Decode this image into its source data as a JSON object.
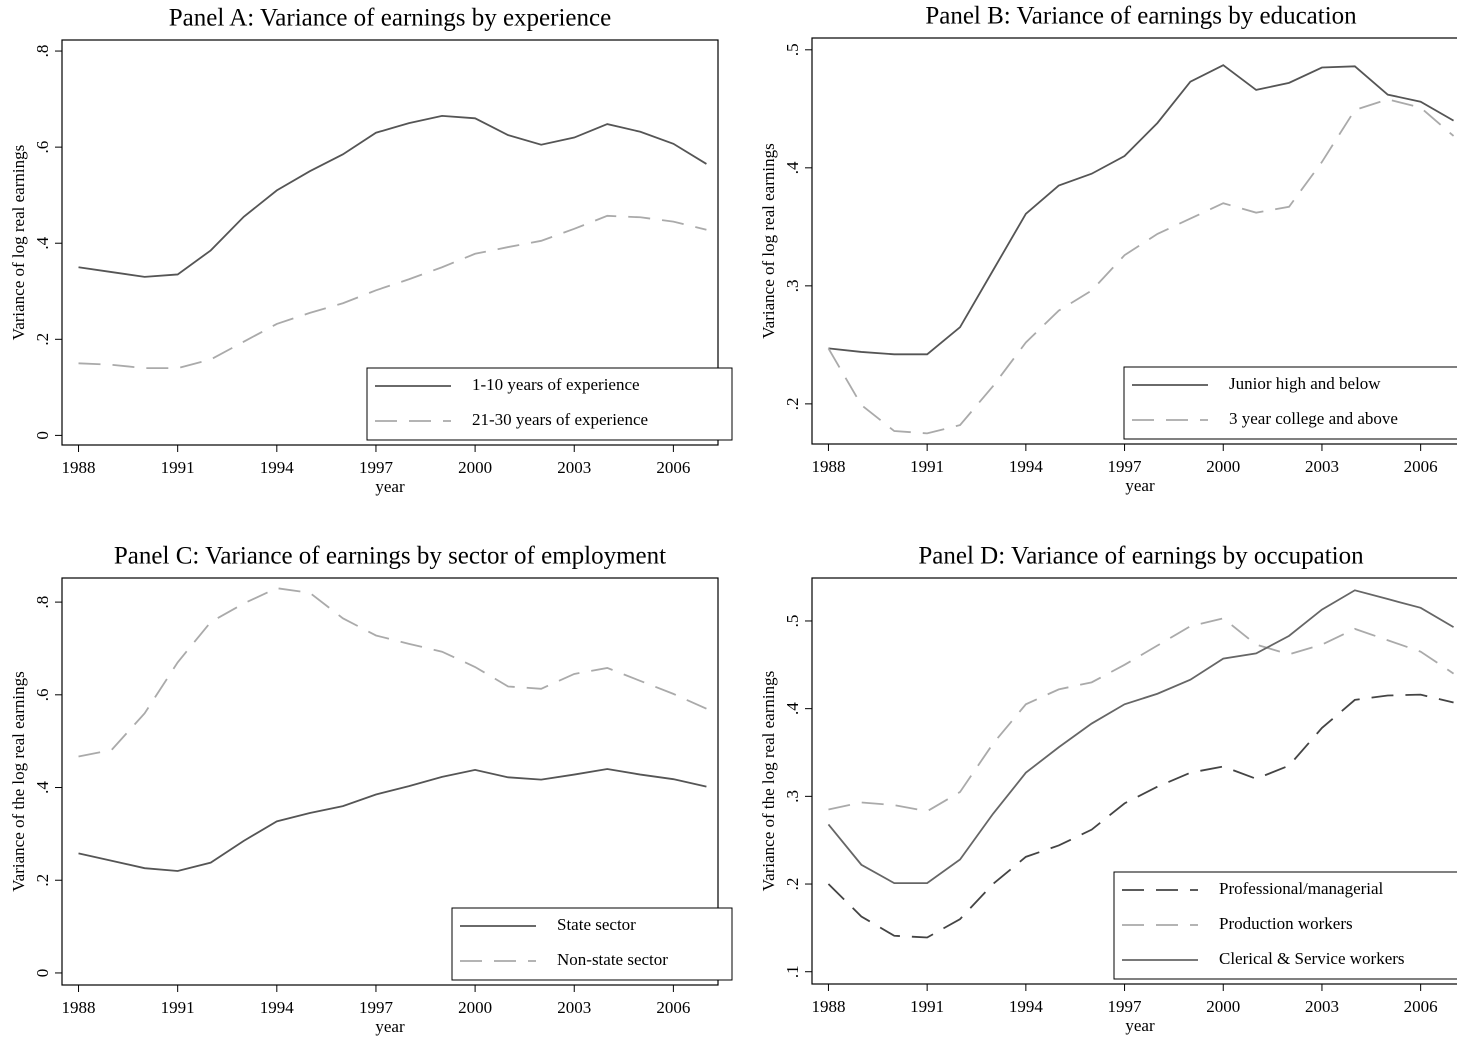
{
  "chart_data": [
    {
      "type": "line",
      "title": "Panel A: Variance of earnings by experience",
      "x_label": "year",
      "y_label": "Variance of log real earnings",
      "x": [
        1988,
        1989,
        1990,
        1991,
        1992,
        1993,
        1994,
        1995,
        1996,
        1997,
        1998,
        1999,
        2000,
        2001,
        2002,
        2003,
        2004,
        2005,
        2006,
        2007
      ],
      "xlim": [
        1987.5,
        2007.35
      ],
      "xticks": [
        1988,
        1991,
        1994,
        1997,
        2000,
        2003,
        2006
      ],
      "ylim": [
        -0.02,
        0.823
      ],
      "yticks": [
        0,
        {
          "value": 0.2,
          "label": ".2"
        },
        {
          "value": 0.4,
          "label": ".4"
        },
        {
          "value": 0.6,
          "label": ".6"
        },
        {
          "value": 0.8,
          "label": ".8"
        }
      ],
      "legend": "lower right",
      "series": [
        {
          "name": "1-10 years of experience",
          "color": "#555555",
          "dashed": false,
          "values": [
            0.35,
            0.34,
            0.33,
            0.335,
            0.385,
            0.455,
            0.51,
            0.55,
            0.585,
            0.63,
            0.65,
            0.665,
            0.66,
            0.625,
            0.605,
            0.62,
            0.648,
            0.632,
            0.607,
            0.565
          ]
        },
        {
          "name": "21-30 years of experience",
          "color": "#aaaaaa",
          "dashed": true,
          "values": [
            0.15,
            0.147,
            0.14,
            0.14,
            0.158,
            0.195,
            0.232,
            0.255,
            0.275,
            0.302,
            0.325,
            0.35,
            0.378,
            0.392,
            0.405,
            0.43,
            0.457,
            0.454,
            0.445,
            0.428
          ]
        }
      ]
    },
    {
      "type": "line",
      "title": "Panel B: Variance of earnings by education",
      "x_label": "year",
      "y_label": "Variance of log real earnings",
      "x": [
        1988,
        1989,
        1990,
        1991,
        1992,
        1993,
        1994,
        1995,
        1996,
        1997,
        1998,
        1999,
        2000,
        2001,
        2002,
        2003,
        2004,
        2005,
        2006,
        2007
      ],
      "xlim": [
        1987.5,
        2007.5
      ],
      "xticks": [
        1988,
        1991,
        1994,
        1997,
        2000,
        2003,
        2006
      ],
      "ylim": [
        0.166,
        0.51
      ],
      "yticks": [
        {
          "value": 0.2,
          "label": ".2"
        },
        {
          "value": 0.3,
          "label": ".3"
        },
        {
          "value": 0.4,
          "label": ".4"
        },
        {
          "value": 0.5,
          "label": ".5"
        }
      ],
      "legend": "lower right",
      "series": [
        {
          "name": "Junior high and below",
          "color": "#555555",
          "dashed": false,
          "values": [
            0.247,
            0.244,
            0.242,
            0.242,
            0.265,
            0.313,
            0.361,
            0.385,
            0.395,
            0.41,
            0.438,
            0.473,
            0.487,
            0.466,
            0.472,
            0.485,
            0.486,
            0.462,
            0.456,
            0.44
          ]
        },
        {
          "name": "3 year college and above",
          "color": "#aaaaaa",
          "dashed": true,
          "values": [
            0.247,
            0.199,
            0.177,
            0.175,
            0.182,
            0.215,
            0.252,
            0.279,
            0.296,
            0.326,
            0.344,
            0.357,
            0.37,
            0.362,
            0.367,
            0.405,
            0.449,
            0.458,
            0.451,
            0.427
          ]
        }
      ]
    },
    {
      "type": "line",
      "title": "Panel C: Variance of earnings by sector of employment",
      "x_label": "year",
      "y_label": "Variance of the log real earnings",
      "x": [
        1988,
        1989,
        1990,
        1991,
        1992,
        1993,
        1994,
        1995,
        1996,
        1997,
        1998,
        1999,
        2000,
        2001,
        2002,
        2003,
        2004,
        2005,
        2006,
        2007
      ],
      "xlim": [
        1987.5,
        2007.35
      ],
      "xticks": [
        1988,
        1991,
        1994,
        1997,
        2000,
        2003,
        2006
      ],
      "ylim": [
        -0.026,
        0.852
      ],
      "yticks": [
        0,
        {
          "value": 0.2,
          "label": ".2"
        },
        {
          "value": 0.4,
          "label": ".4"
        },
        {
          "value": 0.6,
          "label": ".6"
        },
        {
          "value": 0.8,
          "label": ".8"
        }
      ],
      "legend": "lower right",
      "series": [
        {
          "name": "State sector",
          "color": "#555555",
          "dashed": false,
          "values": [
            0.258,
            0.242,
            0.226,
            0.22,
            0.238,
            0.285,
            0.327,
            0.345,
            0.36,
            0.385,
            0.403,
            0.423,
            0.438,
            0.422,
            0.417,
            0.428,
            0.44,
            0.428,
            0.418,
            0.402
          ]
        },
        {
          "name": "Non-state sector",
          "color": "#aaaaaa",
          "dashed": true,
          "values": [
            0.467,
            0.481,
            0.56,
            0.67,
            0.757,
            0.797,
            0.83,
            0.82,
            0.765,
            0.728,
            0.71,
            0.693,
            0.66,
            0.618,
            0.613,
            0.645,
            0.658,
            0.63,
            0.602,
            0.57
          ]
        }
      ]
    },
    {
      "type": "line",
      "title": "Panel D: Variance of earnings by occupation",
      "x_label": "year",
      "y_label": "Variance of the log real earnings",
      "x": [
        1988,
        1989,
        1990,
        1991,
        1992,
        1993,
        1994,
        1995,
        1996,
        1997,
        1998,
        1999,
        2000,
        2001,
        2002,
        2003,
        2004,
        2005,
        2006,
        2007
      ],
      "xlim": [
        1987.5,
        2007.5
      ],
      "xticks": [
        1988,
        1991,
        1994,
        1997,
        2000,
        2003,
        2006
      ],
      "ylim": [
        0.086,
        0.549
      ],
      "yticks": [
        {
          "value": 0.1,
          "label": ".1"
        },
        {
          "value": 0.2,
          "label": ".2"
        },
        {
          "value": 0.3,
          "label": ".3"
        },
        {
          "value": 0.4,
          "label": ".4"
        },
        {
          "value": 0.5,
          "label": ".5"
        }
      ],
      "legend": "lower right",
      "series": [
        {
          "name": "Professional/managerial",
          "color": "#444444",
          "dashed": true,
          "values": [
            0.2,
            0.163,
            0.141,
            0.139,
            0.16,
            0.2,
            0.231,
            0.244,
            0.262,
            0.292,
            0.311,
            0.327,
            0.334,
            0.32,
            0.335,
            0.378,
            0.41,
            0.415,
            0.416,
            0.407
          ]
        },
        {
          "name": "Production workers",
          "color": "#aaaaaa",
          "dashed": true,
          "values": [
            0.285,
            0.293,
            0.29,
            0.283,
            0.305,
            0.36,
            0.405,
            0.422,
            0.43,
            0.45,
            0.472,
            0.494,
            0.503,
            0.473,
            0.462,
            0.473,
            0.491,
            0.478,
            0.465,
            0.44
          ]
        },
        {
          "name": "Clerical & Service workers",
          "color": "#666666",
          "dashed": false,
          "values": [
            0.268,
            0.222,
            0.201,
            0.201,
            0.228,
            0.28,
            0.327,
            0.356,
            0.383,
            0.405,
            0.417,
            0.433,
            0.457,
            0.463,
            0.483,
            0.513,
            0.535,
            0.525,
            0.515,
            0.493
          ]
        }
      ]
    }
  ]
}
